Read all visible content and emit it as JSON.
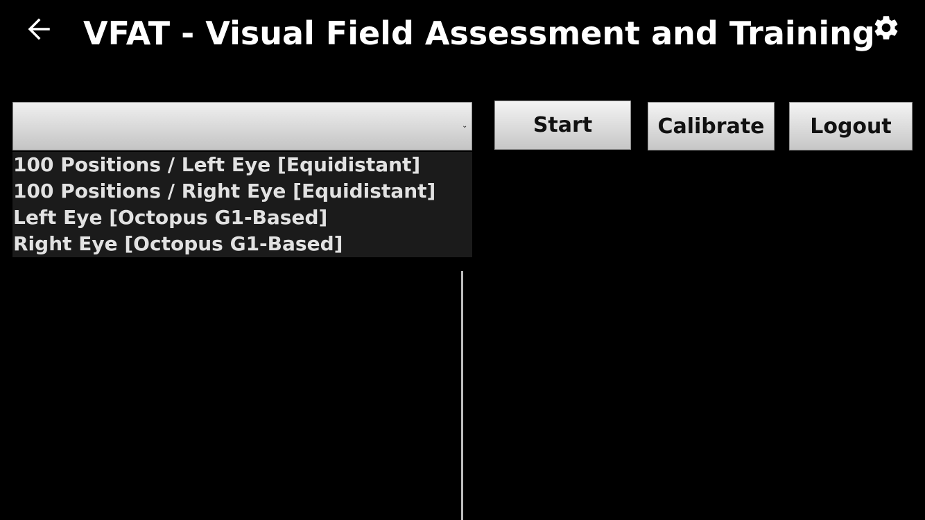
{
  "header": {
    "title": "VFAT - Visual Field Assessment and Training",
    "back_icon": "arrow-left-icon",
    "settings_icon": "gear-icon"
  },
  "spinner": {
    "selected_value": "",
    "options": [
      "100 Positions / Left Eye [Equidistant]",
      "100 Positions / Right Eye [Equidistant]",
      "Left Eye [Octopus G1-Based]",
      "Right Eye [Octopus G1-Based]"
    ]
  },
  "buttons": {
    "start_label": "Start",
    "calibrate_label": "Calibrate",
    "logout_label": "Logout"
  },
  "colors": {
    "background": "#000000",
    "title_text": "#ffffff",
    "dropdown_bg": "#1b1b1b",
    "dropdown_text": "#e2e2e2",
    "button_text": "#111111"
  }
}
